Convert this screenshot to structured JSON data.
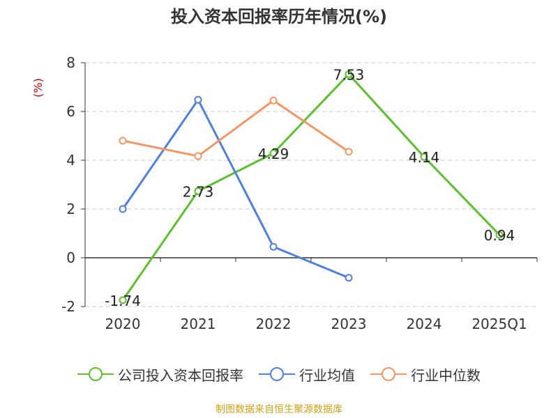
{
  "title": "投入资本回报率历年情况(%)",
  "source": "制图数据来自恒生聚源数据库",
  "chart_data": {
    "type": "line",
    "categories": [
      "2020",
      "2021",
      "2022",
      "2023",
      "2024",
      "2025Q1"
    ],
    "ylabel": "(%)",
    "ylim": [
      -2,
      8
    ],
    "yticks": [
      -2,
      0,
      2,
      4,
      6,
      8
    ],
    "grid": true,
    "legend_position": "bottom",
    "series": [
      {
        "name": "公司投入资本回报率",
        "color": "#5cc02c",
        "values": [
          -1.74,
          2.73,
          4.29,
          7.53,
          4.14,
          0.94
        ],
        "labels": [
          "-1.74",
          "2.73",
          "4.29",
          "7.53",
          "4.14",
          "0.94"
        ]
      },
      {
        "name": "行业均值",
        "color": "#4f7fdf",
        "values": [
          2.0,
          6.48,
          0.45,
          -0.82,
          null,
          null
        ]
      },
      {
        "name": "行业中位数",
        "color": "#f79563",
        "values": [
          4.8,
          4.17,
          6.45,
          4.35,
          null,
          null
        ]
      }
    ]
  }
}
